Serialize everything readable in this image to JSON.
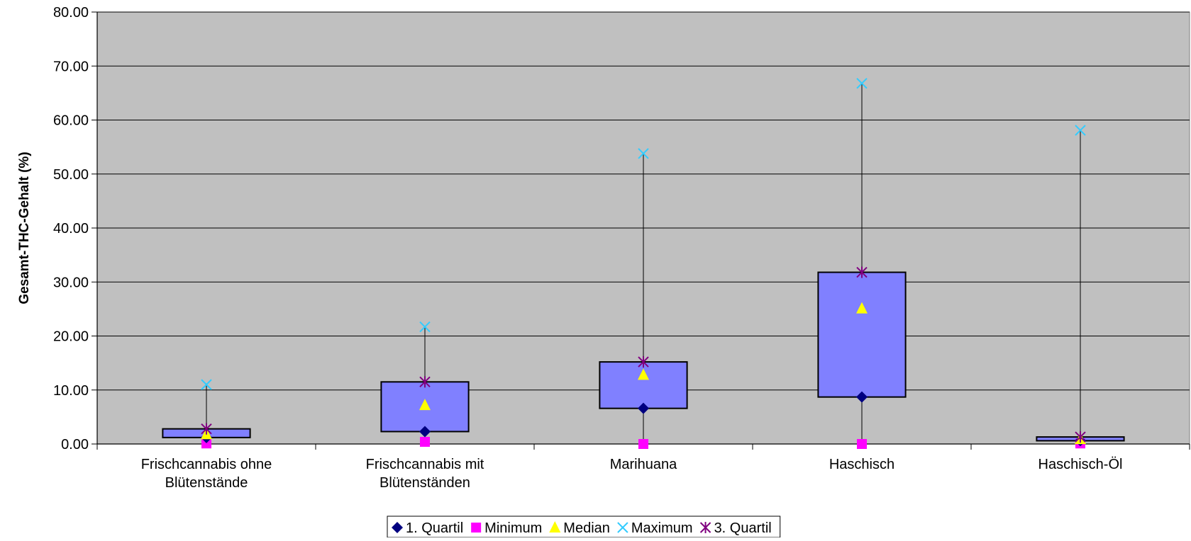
{
  "chart_data": {
    "type": "box",
    "title": "",
    "xlabel": "",
    "ylabel": "Gesamt-THC-Gehalt (%)",
    "ylim": [
      0,
      80
    ],
    "yticks": [
      "0.00",
      "10.00",
      "20.00",
      "30.00",
      "40.00",
      "50.00",
      "60.00",
      "70.00",
      "80.00"
    ],
    "grid": true,
    "legend_position": "bottom",
    "categories": [
      [
        "Frischcannabis ohne",
        "Blütenstände"
      ],
      [
        "Frischcannabis mit",
        "Blütenständen"
      ],
      [
        "Marihuana"
      ],
      [
        "Haschisch"
      ],
      [
        "Haschisch-Öl"
      ]
    ],
    "series": [
      {
        "name": "1. Quartil",
        "values": [
          1.2,
          2.3,
          6.6,
          8.7,
          0.6
        ],
        "color": "#000080",
        "marker": "diamond"
      },
      {
        "name": "Minimum",
        "values": [
          0.1,
          0.4,
          0.0,
          0.0,
          0.1
        ],
        "color": "#ff00ff",
        "marker": "square"
      },
      {
        "name": "Median",
        "values": [
          1.8,
          7.2,
          12.8,
          25.1,
          0.9
        ],
        "color": "#ffff00",
        "marker": "triangle"
      },
      {
        "name": "Maximum",
        "values": [
          11.0,
          21.7,
          53.8,
          66.8,
          58.1
        ],
        "color": "#33ccff",
        "marker": "x"
      },
      {
        "name": "3. Quartil",
        "values": [
          2.8,
          11.5,
          15.2,
          31.8,
          1.3
        ],
        "color": "#800080",
        "marker": "star"
      }
    ],
    "box_fill": "#8080ff",
    "plot_background": "#c0c0c0"
  }
}
